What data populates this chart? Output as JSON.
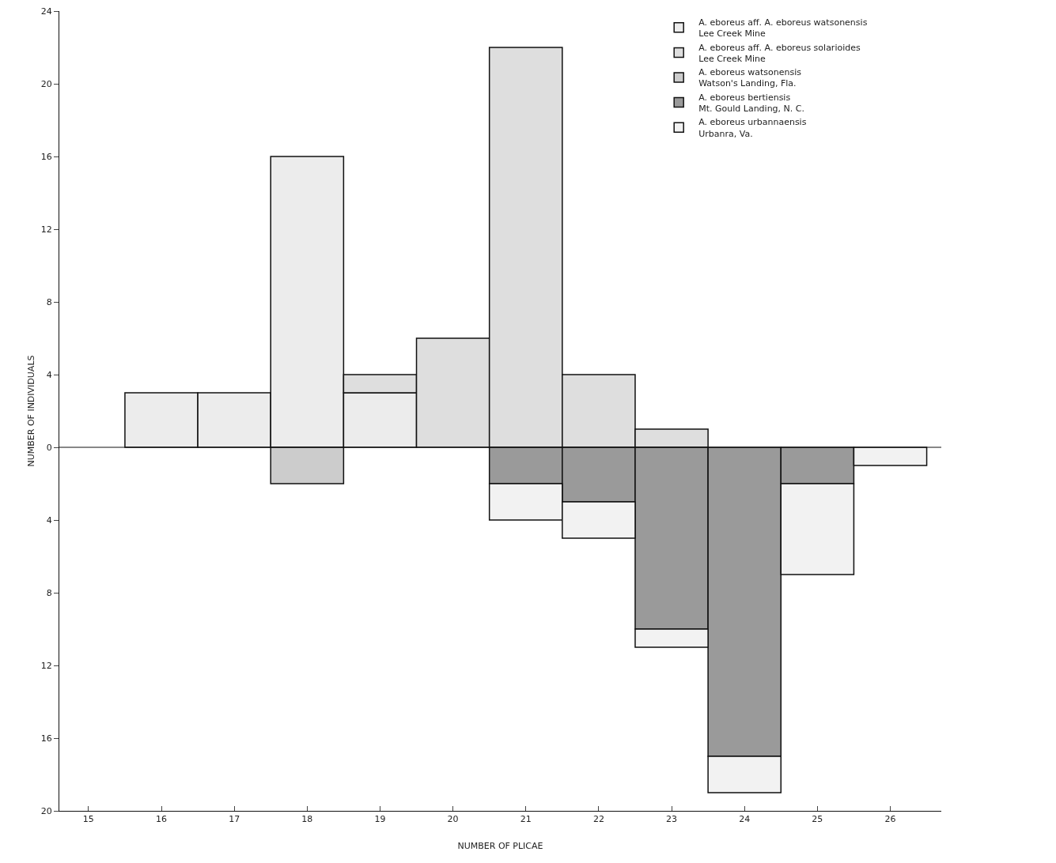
{
  "chart_data": {
    "type": "bar",
    "stacked": true,
    "xlabel": "NUMBER OF PLICAE",
    "ylabel": "NUMBER OF INDIVIDUALS",
    "x": [
      16,
      17,
      18,
      19,
      20,
      21,
      22,
      23,
      24,
      25,
      26
    ],
    "series": [
      {
        "name": "A. eboreus aff. A. eboreus watsonensis\nLee Creek Mine",
        "color": "#ececec",
        "values": [
          3,
          3,
          16,
          3,
          null,
          null,
          null,
          null,
          null,
          null,
          null
        ]
      },
      {
        "name": "A. eboreus aff. A. eboreus solarioides\nLee Creek Mine",
        "color": "#dedede",
        "values": [
          null,
          null,
          null,
          1,
          6,
          22,
          4,
          1,
          null,
          null,
          null
        ]
      },
      {
        "name": "A. eboreus watsonensis\nWatson's Landing, Fla.",
        "color": "#cccccc",
        "values": [
          null,
          null,
          -2,
          null,
          null,
          null,
          null,
          null,
          null,
          null,
          null
        ]
      },
      {
        "name": "A. eboreus bertiensis\nMt. Gould Landing, N. C.",
        "color": "#9a9a9a",
        "values": [
          null,
          null,
          null,
          null,
          null,
          -2,
          -3,
          -10,
          -17,
          -2,
          null
        ]
      },
      {
        "name": "A. eboreus urbannaensis\nUrbanra, Va.",
        "color": "#f2f2f2",
        "values": [
          null,
          null,
          null,
          null,
          null,
          -2,
          -2,
          -1,
          -2,
          -5,
          -1
        ]
      }
    ],
    "xlim": [
      14.6,
      26.7
    ],
    "xticks": [
      15,
      16,
      17,
      18,
      19,
      20,
      21,
      22,
      23,
      24,
      25,
      26
    ],
    "ylim": [
      -20,
      24
    ],
    "yticks": [
      {
        "value": -20,
        "label": "20"
      },
      {
        "value": -16,
        "label": "16"
      },
      {
        "value": -12,
        "label": "12"
      },
      {
        "value": -8,
        "label": "8"
      },
      {
        "value": -4,
        "label": "4"
      },
      0,
      4,
      8,
      12,
      16,
      20,
      24
    ],
    "ref_lines": [
      {
        "axis": "y",
        "value": 0
      }
    ],
    "grid": false,
    "legend": "top right"
  }
}
